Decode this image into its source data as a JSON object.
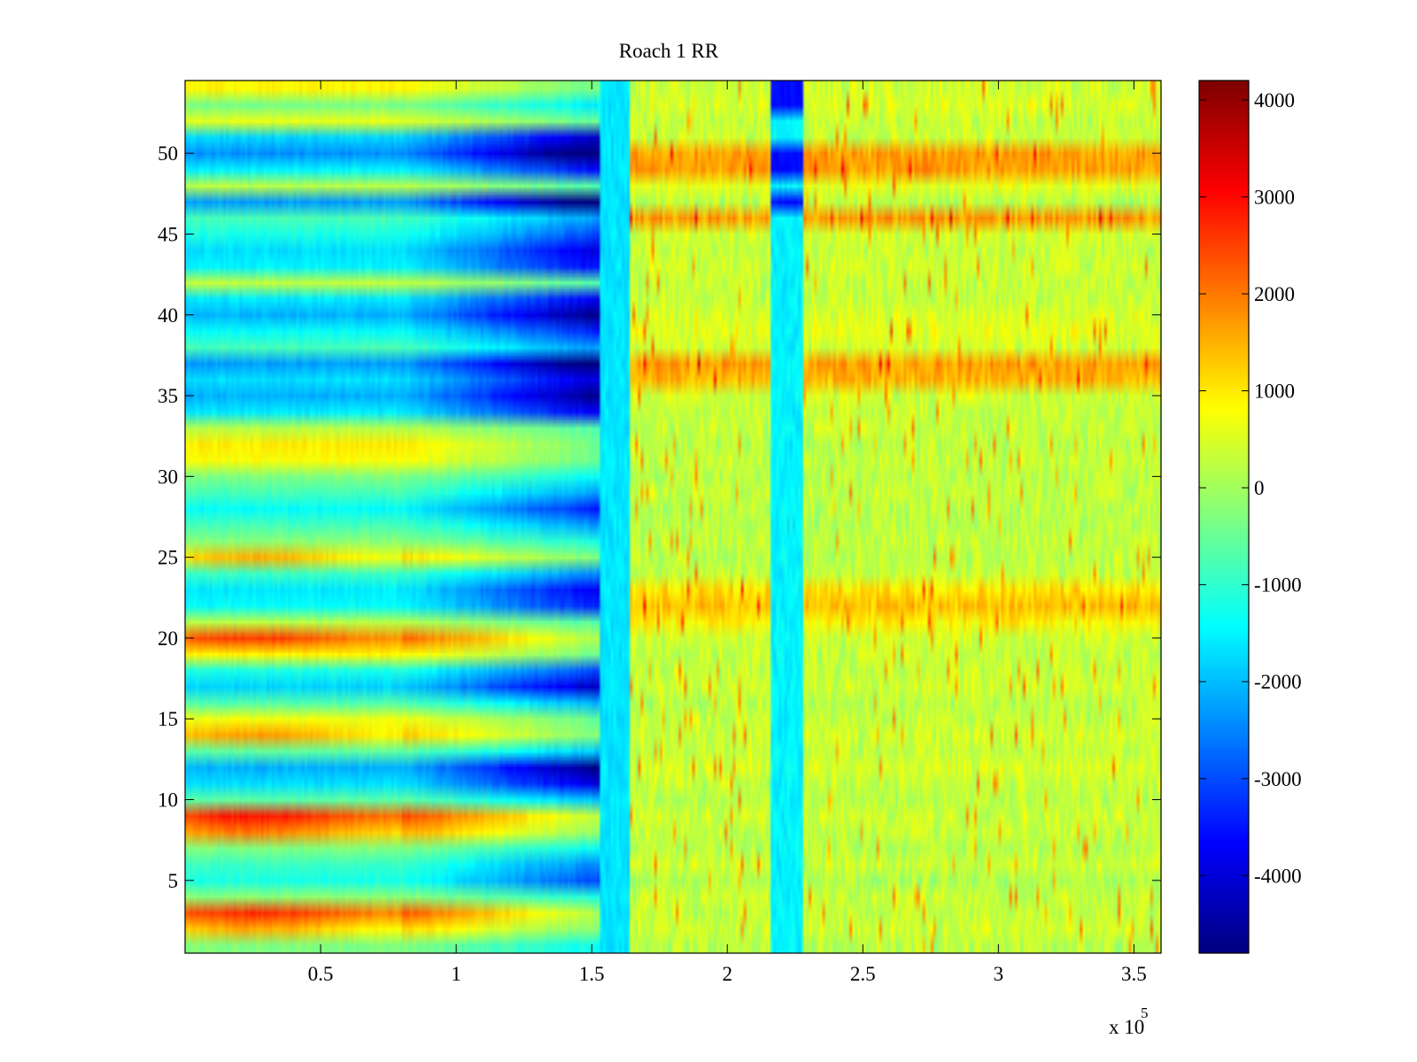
{
  "chart_data": {
    "type": "heatmap",
    "title": "Roach 1 RR",
    "xlabel": "",
    "ylabel": "",
    "x_exponent_label": "x 10",
    "x_exponent_power": "5",
    "xlim": [
      0,
      3.6
    ],
    "ylim": [
      0.5,
      54.5
    ],
    "x_ticks": [
      0.5,
      1,
      1.5,
      2,
      2.5,
      3,
      3.5
    ],
    "x_tick_labels": [
      "0.5",
      "1",
      "1.5",
      "2",
      "2.5",
      "3",
      "3.5"
    ],
    "y_ticks": [
      5,
      10,
      15,
      20,
      25,
      30,
      35,
      40,
      45,
      50
    ],
    "y_tick_labels": [
      "5",
      "10",
      "15",
      "20",
      "25",
      "30",
      "35",
      "40",
      "45",
      "50"
    ],
    "colormap": "jet",
    "clim": [
      -4800,
      4200
    ],
    "colorbar_ticks": [
      4000,
      3000,
      2000,
      1000,
      0,
      -1000,
      -2000,
      -3000,
      -4000
    ],
    "colorbar_tick_labels": [
      "4000",
      "3000",
      "2000",
      "1000",
      "0",
      "-1000",
      "-2000",
      "-3000",
      "-4000"
    ],
    "rows": 54,
    "columns": 360,
    "x_breakpoints": [
      0,
      0.8,
      1.53,
      1.64,
      2.16,
      2.18,
      2.28,
      3.6
    ],
    "pattern_note_rows": "row index 1..54; pre = level before x=1.53 (trend toward negative), post = level after x=1.64",
    "row_levels": {
      "pre": [
        -300,
        1200,
        2300,
        -200,
        -1200,
        -900,
        -300,
        1600,
        2500,
        -600,
        -1700,
        -2100,
        -600,
        1300,
        700,
        -700,
        -1800,
        -1200,
        900,
        2200,
        200,
        -1400,
        -1600,
        -900,
        1100,
        -200,
        -800,
        -1400,
        -800,
        -300,
        800,
        1000,
        200,
        -1600,
        -2100,
        -1700,
        -2300,
        -800,
        -1400,
        -2100,
        -1600,
        300,
        -1500,
        -1700,
        -1200,
        -800,
        -2300,
        200,
        -1500,
        -2400,
        -1800,
        600,
        -400,
        900
      ],
      "post": [
        200,
        400,
        300,
        300,
        100,
        400,
        200,
        300,
        400,
        200,
        300,
        500,
        300,
        400,
        300,
        200,
        400,
        300,
        300,
        400,
        900,
        1400,
        1100,
        300,
        200,
        300,
        200,
        200,
        300,
        200,
        300,
        200,
        300,
        300,
        400,
        1500,
        1700,
        400,
        600,
        500,
        300,
        300,
        400,
        300,
        400,
        1700,
        200,
        600,
        1700,
        1700,
        400,
        300,
        500,
        400
      ]
    }
  }
}
